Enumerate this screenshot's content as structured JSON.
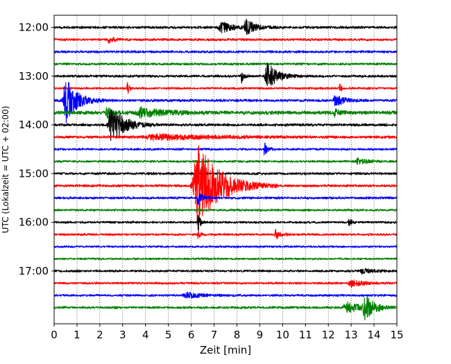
{
  "chart_data": {
    "type": "line",
    "title": "",
    "xlabel": "Zeit  [min]",
    "ylabel": "UTC (Lokalzeit = UTC + 02:00)",
    "xlim": [
      0,
      15
    ],
    "x_ticks": [
      0,
      1,
      2,
      3,
      4,
      5,
      6,
      7,
      8,
      9,
      10,
      11,
      12,
      13,
      14,
      15
    ],
    "y_ticks": [
      "12:00",
      "13:00",
      "14:00",
      "15:00",
      "16:00",
      "17:00"
    ],
    "grid": "vertical dotted",
    "trace_colors": [
      "#000000",
      "#ff0000",
      "#0000ff",
      "#008000"
    ],
    "traces_per_hour": 4,
    "trace_minutes": 15,
    "series": [
      {
        "start": "12:00",
        "color": "#000000",
        "noise": 2.0,
        "events": [
          {
            "t": 7.3,
            "amp": 8,
            "dur": 1.0
          },
          {
            "t": 8.4,
            "amp": 10,
            "dur": 0.9
          }
        ]
      },
      {
        "start": "12:15",
        "color": "#ff0000",
        "noise": 2.0,
        "events": [
          {
            "t": 2.4,
            "amp": 4,
            "dur": 0.6
          }
        ]
      },
      {
        "start": "12:30",
        "color": "#0000ff",
        "noise": 2.0,
        "events": []
      },
      {
        "start": "12:45",
        "color": "#008000",
        "noise": 2.0,
        "events": []
      },
      {
        "start": "13:00",
        "color": "#000000",
        "noise": 2.0,
        "events": [
          {
            "t": 8.2,
            "amp": 10,
            "dur": 0.2
          },
          {
            "t": 9.3,
            "amp": 22,
            "dur": 0.9
          }
        ]
      },
      {
        "start": "13:15",
        "color": "#ff0000",
        "noise": 1.8,
        "events": [
          {
            "t": 3.2,
            "amp": 12,
            "dur": 0.15
          },
          {
            "t": 12.5,
            "amp": 8,
            "dur": 0.15
          }
        ]
      },
      {
        "start": "13:30",
        "color": "#0000ff",
        "noise": 2.2,
        "events": [
          {
            "t": 0.5,
            "amp": 34,
            "dur": 1.0
          },
          {
            "t": 12.3,
            "amp": 8,
            "dur": 0.8
          }
        ]
      },
      {
        "start": "13:45",
        "color": "#008000",
        "noise": 3.0,
        "events": [
          {
            "t": 2.3,
            "amp": 10,
            "dur": 0.4
          },
          {
            "t": 3.8,
            "amp": 6,
            "dur": 2.2
          },
          {
            "t": 12.3,
            "amp": 6,
            "dur": 0.4
          }
        ]
      },
      {
        "start": "14:00",
        "color": "#000000",
        "noise": 2.2,
        "events": [
          {
            "t": 2.5,
            "amp": 28,
            "dur": 1.2
          }
        ]
      },
      {
        "start": "14:15",
        "color": "#ff0000",
        "noise": 2.2,
        "events": [
          {
            "t": 4.5,
            "amp": 4,
            "dur": 5.0
          }
        ]
      },
      {
        "start": "14:30",
        "color": "#0000ff",
        "noise": 1.8,
        "events": [
          {
            "t": 9.2,
            "amp": 12,
            "dur": 0.3
          }
        ]
      },
      {
        "start": "14:45",
        "color": "#008000",
        "noise": 1.8,
        "events": [
          {
            "t": 13.3,
            "amp": 4,
            "dur": 1.0
          }
        ]
      },
      {
        "start": "15:00",
        "color": "#000000",
        "noise": 2.0,
        "events": []
      },
      {
        "start": "15:15",
        "color": "#ff0000",
        "noise": 2.0,
        "events": [
          {
            "t": 6.3,
            "amp": 62,
            "dur": 2.0
          }
        ]
      },
      {
        "start": "15:30",
        "color": "#0000ff",
        "noise": 2.0,
        "events": [
          {
            "t": 6.3,
            "amp": 10,
            "dur": 0.4
          }
        ]
      },
      {
        "start": "15:45",
        "color": "#008000",
        "noise": 1.8,
        "events": []
      },
      {
        "start": "16:00",
        "color": "#000000",
        "noise": 1.8,
        "events": [
          {
            "t": 6.3,
            "amp": 18,
            "dur": 0.2
          },
          {
            "t": 12.9,
            "amp": 9,
            "dur": 0.2
          }
        ]
      },
      {
        "start": "16:15",
        "color": "#ff0000",
        "noise": 1.8,
        "events": [
          {
            "t": 6.3,
            "amp": 8,
            "dur": 0.2
          },
          {
            "t": 9.7,
            "amp": 7,
            "dur": 0.5
          }
        ]
      },
      {
        "start": "16:30",
        "color": "#0000ff",
        "noise": 1.6,
        "events": []
      },
      {
        "start": "16:45",
        "color": "#008000",
        "noise": 1.6,
        "events": []
      },
      {
        "start": "17:00",
        "color": "#000000",
        "noise": 1.8,
        "events": [
          {
            "t": 13.5,
            "amp": 4,
            "dur": 1.0
          }
        ]
      },
      {
        "start": "17:15",
        "color": "#ff0000",
        "noise": 1.8,
        "events": [
          {
            "t": 13.0,
            "amp": 5,
            "dur": 1.2
          }
        ]
      },
      {
        "start": "17:30",
        "color": "#0000ff",
        "noise": 1.8,
        "events": [
          {
            "t": 5.8,
            "amp": 4,
            "dur": 1.5
          }
        ]
      },
      {
        "start": "17:45",
        "color": "#008000",
        "noise": 2.0,
        "events": [
          {
            "t": 12.8,
            "amp": 7,
            "dur": 1.6
          },
          {
            "t": 13.6,
            "amp": 16,
            "dur": 0.8
          }
        ]
      }
    ]
  }
}
